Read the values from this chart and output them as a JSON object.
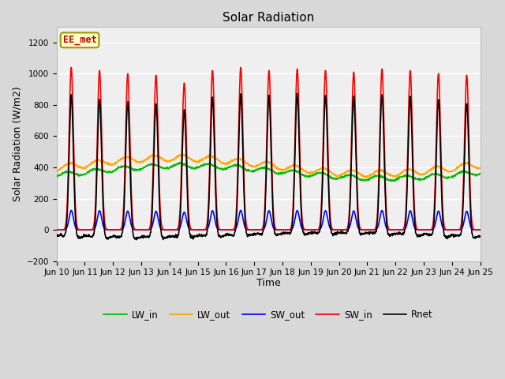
{
  "title": "Solar Radiation",
  "xlabel": "Time",
  "ylabel": "Solar Radiation (W/m2)",
  "ylim": [
    -200,
    1300
  ],
  "yticks": [
    -200,
    0,
    200,
    400,
    600,
    800,
    1000,
    1200
  ],
  "label_text": "EE_met",
  "label_bg": "#FFFFCC",
  "label_border": "#999900",
  "label_text_color": "#CC0000",
  "n_days": 15,
  "dt_hours": 0.25,
  "lines": {
    "SW_in": {
      "color": "#FF0000",
      "lw": 1.2,
      "label": "SW_in"
    },
    "SW_out": {
      "color": "#0000FF",
      "lw": 1.2,
      "label": "SW_out"
    },
    "LW_in": {
      "color": "#00BB00",
      "lw": 1.2,
      "label": "LW_in"
    },
    "LW_out": {
      "color": "#FFA500",
      "lw": 1.2,
      "label": "LW_out"
    },
    "Rnet": {
      "color": "#000000",
      "lw": 1.2,
      "label": "Rnet"
    }
  },
  "x_tick_labels": [
    "Jun 10",
    "Jun 11",
    "Jun 12",
    "Jun 13",
    "Jun 14",
    "Jun 15",
    "Jun 16",
    "Jun 17",
    "Jun 18",
    "Jun 19",
    "Jun 20",
    "Jun 21",
    "Jun 22",
    "Jun 23",
    "Jun 24",
    "Jun 25"
  ],
  "background_color": "#D8D8D8",
  "plot_bg": "#EFEFEF",
  "grid_color": "#FFFFFF",
  "legend_ncol": 5,
  "daily_peaks_sw": [
    1040,
    1020,
    1000,
    990,
    940,
    1020,
    1040,
    1020,
    1030,
    1020,
    1010,
    1030,
    1020,
    1000,
    990
  ],
  "solar_noon": 12.5,
  "solar_halfwidth": 1.8
}
